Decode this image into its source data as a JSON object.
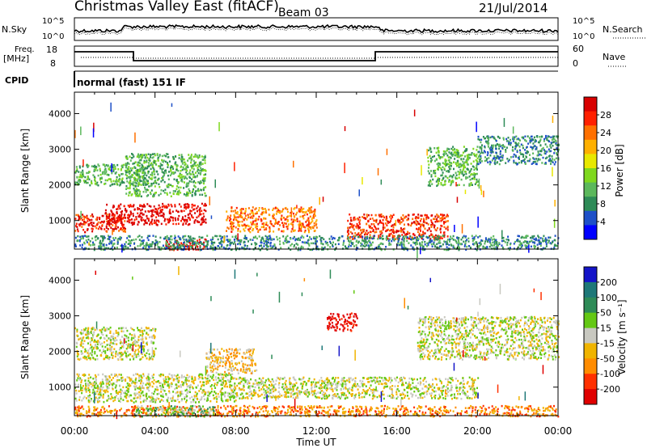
{
  "header": {
    "title": "Christmas Valley East (fitACF)",
    "beam": "Beam 03",
    "date": "21/Jul/2014"
  },
  "top_panels": {
    "nsky_label": "N.Sky",
    "nsky_ticks": [
      "10^5",
      "10^0"
    ],
    "nsky_right_ticks": [
      "10^5",
      "10^0"
    ],
    "nsearch_label": "N.Search",
    "freq_label_1": "Freq.",
    "freq_label_2": "[MHz]",
    "freq_ticks": [
      "18",
      "8"
    ],
    "nave_ticks": [
      "60",
      "0"
    ],
    "nave_label": "Nave",
    "cpid_label": "CPID",
    "cpid_value": "normal (fast) 151 IF"
  },
  "colors": {
    "power": [
      "#0000ff",
      "#1e50c8",
      "#2e8b57",
      "#5cb85c",
      "#7fd81e",
      "#e8e800",
      "#ffb000",
      "#ff7000",
      "#ff2000",
      "#d80000"
    ],
    "velocity": [
      "#1414c8",
      "#1e7878",
      "#2e8b57",
      "#64c814",
      "#c8c8c0",
      "#f0b400",
      "#ff8c00",
      "#ff3000",
      "#e00000"
    ]
  },
  "chart_data": [
    {
      "type": "heatmap",
      "name": "power",
      "ylabel": "Slant Range [km]",
      "yticks": [
        "1000",
        "2000",
        "3000",
        "4000"
      ],
      "ylim": [
        200,
        4600
      ],
      "xticks": [
        "00:00",
        "04:00",
        "08:00",
        "12:00",
        "16:00",
        "20:00",
        "00:00"
      ],
      "colorbar_label": "Power [dB]",
      "colorbar_ticks": [
        "4",
        "8",
        "12",
        "16",
        "20",
        "24",
        "28"
      ],
      "scatter_regions": [
        {
          "t0": 0.0,
          "t1": 3.5,
          "r0": 2000,
          "r1": 2600,
          "level": 3
        },
        {
          "t0": 0.0,
          "t1": 2.5,
          "r0": 700,
          "r1": 1200,
          "level": 8
        },
        {
          "t0": 1.5,
          "t1": 6.5,
          "r0": 900,
          "r1": 1500,
          "level": 9
        },
        {
          "t0": 4.5,
          "t1": 6.5,
          "r0": 200,
          "r1": 500,
          "level": 9
        },
        {
          "t0": 7.5,
          "t1": 12.0,
          "r0": 700,
          "r1": 1400,
          "level": 7
        },
        {
          "t0": 13.5,
          "t1": 18.5,
          "r0": 500,
          "r1": 1200,
          "level": 8
        },
        {
          "t0": 2.5,
          "t1": 6.5,
          "r0": 1700,
          "r1": 2900,
          "level": 3
        },
        {
          "t0": 17.5,
          "t1": 20.0,
          "r0": 2000,
          "r1": 3100,
          "level": 3
        },
        {
          "t0": 20.0,
          "t1": 24.0,
          "r0": 2600,
          "r1": 3400,
          "level": 2
        },
        {
          "t0": 0.0,
          "t1": 24.0,
          "r0": 200,
          "r1": 600,
          "level": 2
        }
      ]
    },
    {
      "type": "heatmap",
      "name": "velocity",
      "ylabel": "Slant Range [km]",
      "yticks": [
        "1000",
        "2000",
        "3000",
        "4000"
      ],
      "ylim": [
        200,
        4600
      ],
      "xticks": [
        "00:00",
        "04:00",
        "08:00",
        "12:00",
        "16:00",
        "20:00",
        "00:00"
      ],
      "xlabel": "Time UT",
      "colorbar_label": "Velocity [m s⁻¹]",
      "colorbar_ticks": [
        "200",
        "100",
        "50",
        "15",
        "-15",
        "-50",
        "-100",
        "-200"
      ],
      "scatter_regions": [
        {
          "t0": 0.0,
          "t1": 4.0,
          "r0": 1800,
          "r1": 2700,
          "level": 4
        },
        {
          "t0": 0.0,
          "t1": 8.0,
          "r0": 600,
          "r1": 1400,
          "level": 4
        },
        {
          "t0": 8.0,
          "t1": 20.0,
          "r0": 700,
          "r1": 1300,
          "level": 4
        },
        {
          "t0": 12.5,
          "t1": 14.0,
          "r0": 2600,
          "r1": 3100,
          "level": 8
        },
        {
          "t0": 6.5,
          "t1": 9.0,
          "r0": 1400,
          "r1": 2100,
          "level": 5
        },
        {
          "t0": 0.0,
          "t1": 24.0,
          "r0": 200,
          "r1": 500,
          "level": 6
        },
        {
          "t0": 3.0,
          "t1": 7.0,
          "r0": 200,
          "r1": 500,
          "level": 3
        },
        {
          "t0": 17.0,
          "t1": 24.0,
          "r0": 1800,
          "r1": 3000,
          "level": 4
        }
      ]
    }
  ]
}
